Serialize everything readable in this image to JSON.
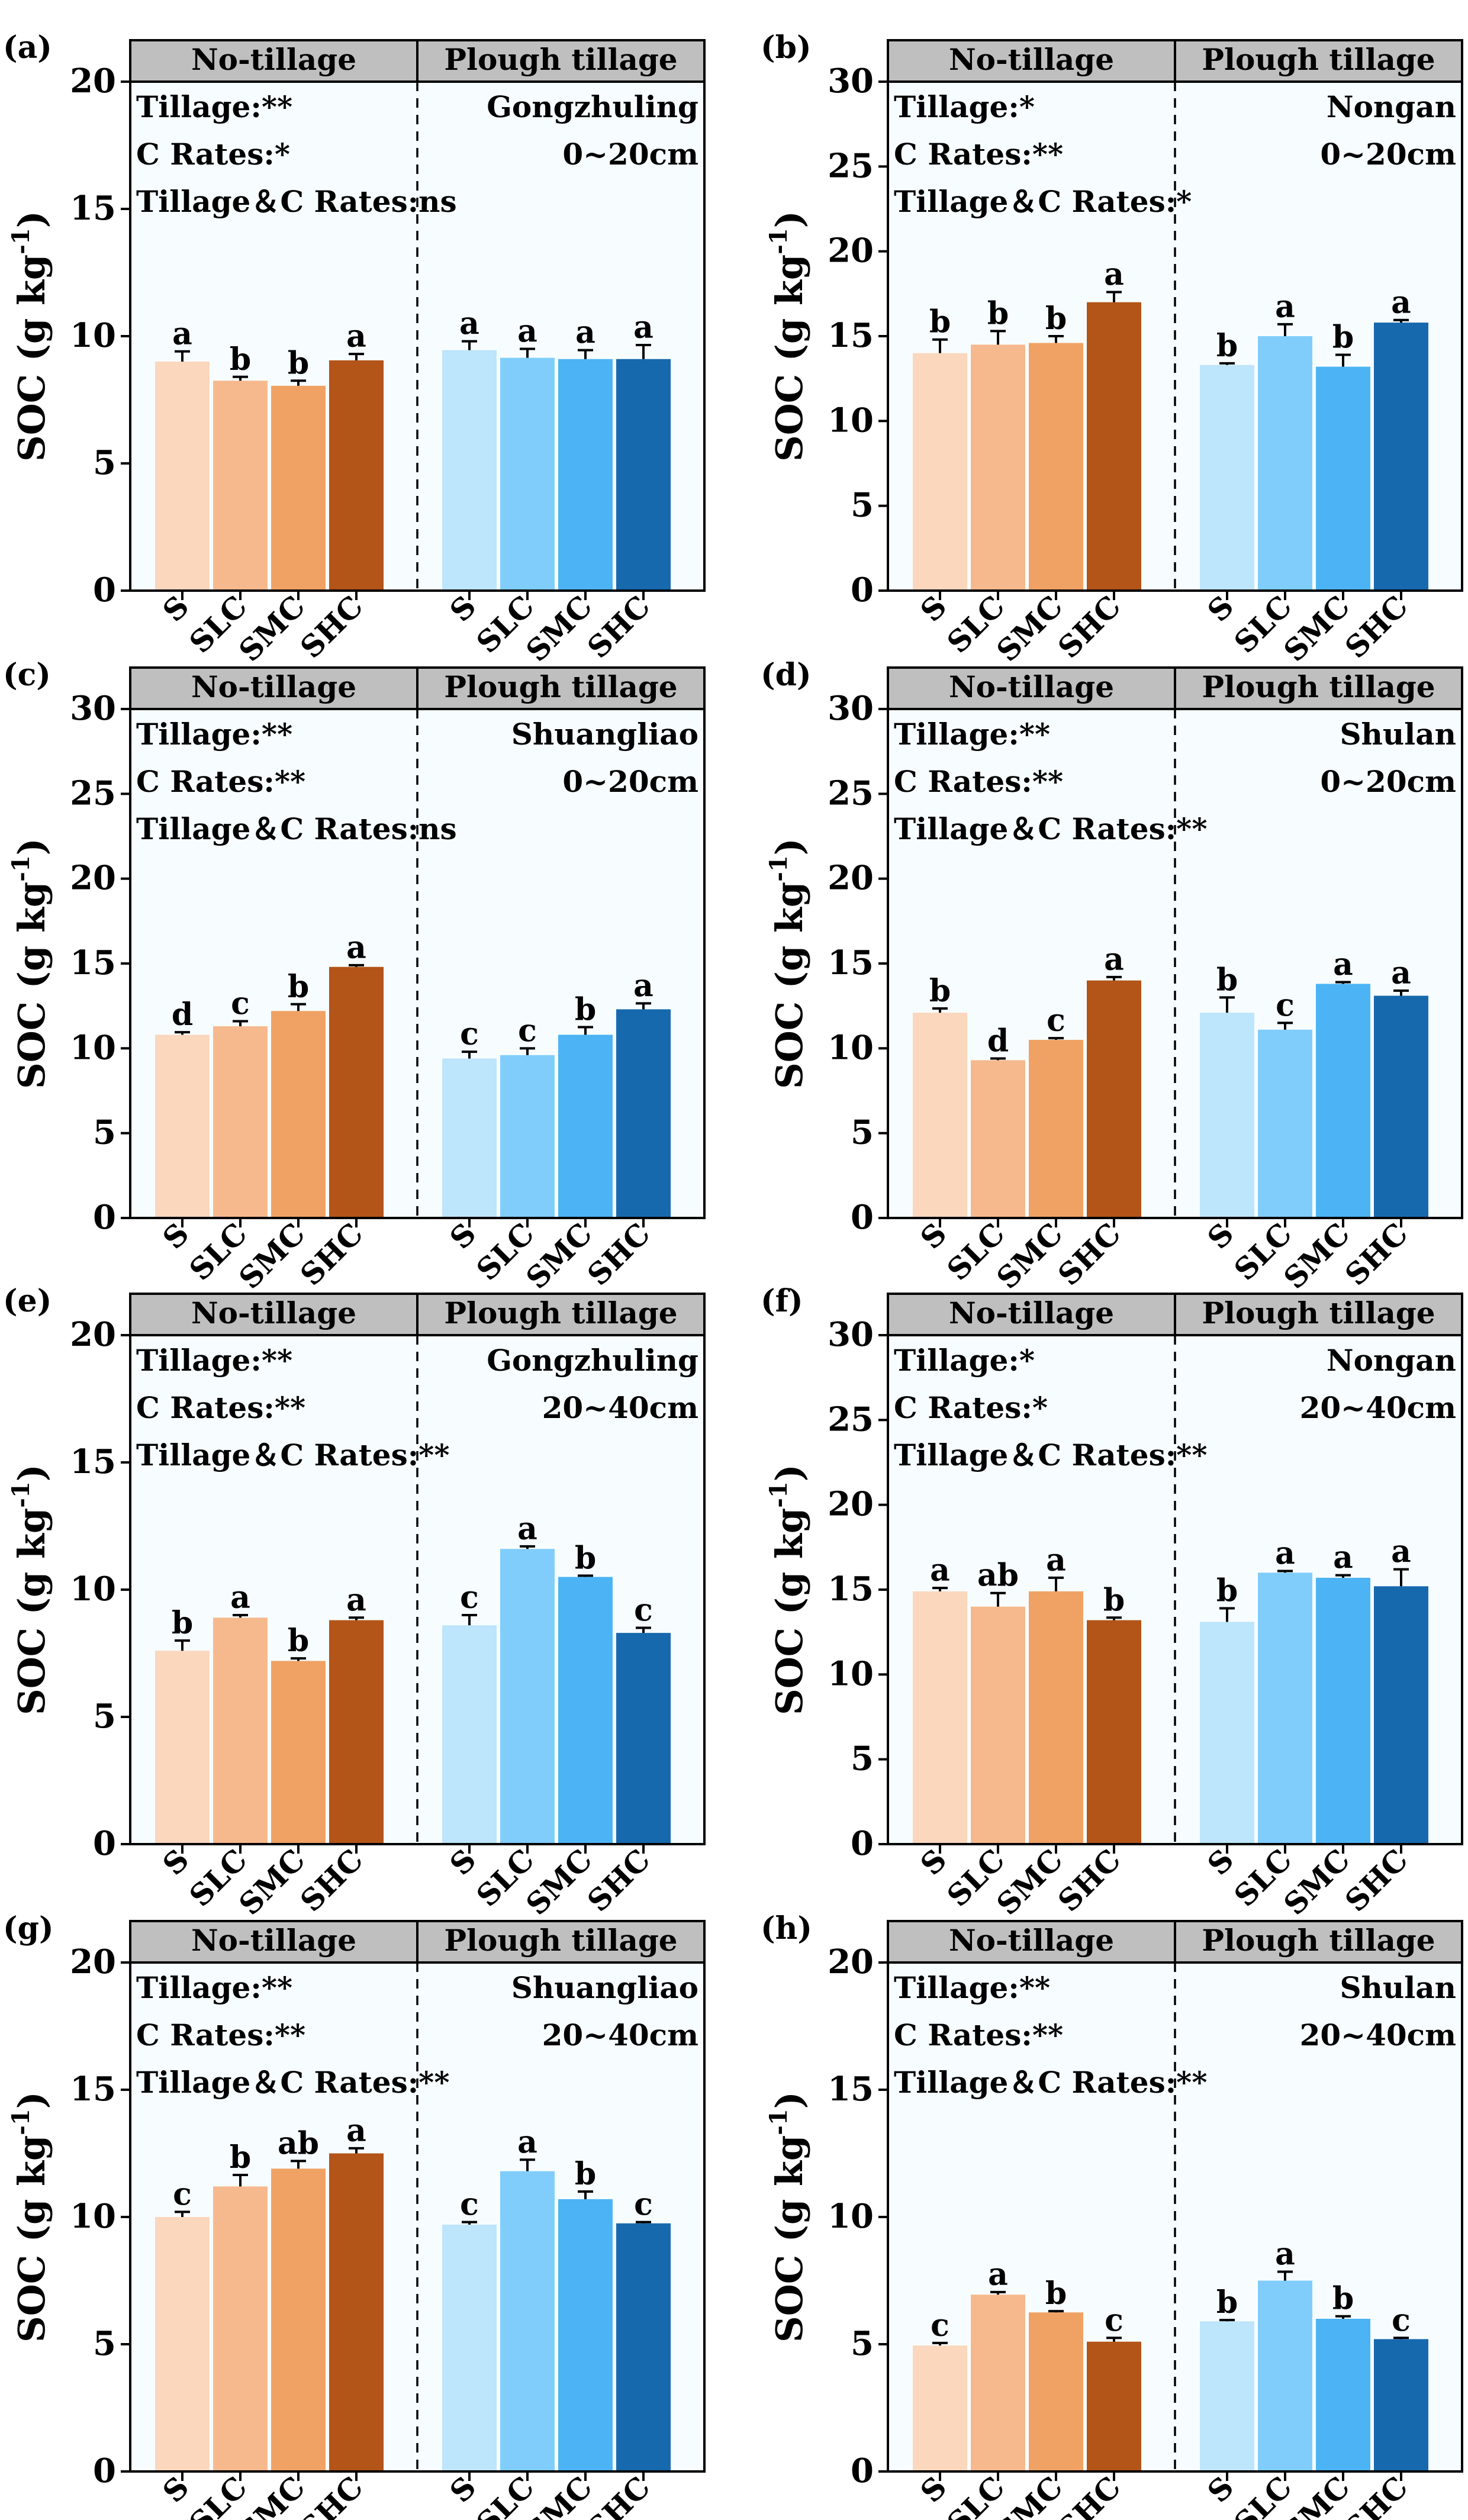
{
  "figure": {
    "y_axis_label": "SOC (g kg",
    "y_axis_superscript": "-1",
    "y_axis_close": ")"
  },
  "colors": {
    "notill": [
      "#fad7bd",
      "#f6b98e",
      "#f0a264",
      "#b35418"
    ],
    "plough": [
      "#bde5fb",
      "#80cdfb",
      "#4cb4f4",
      "#1769ae"
    ],
    "header_fill": "#bfbfbf",
    "panel_fill": "#f7fdff"
  },
  "chart_data": [
    {
      "id": "a",
      "label": "(a)",
      "type": "bar",
      "groups": [
        "No-tillage",
        "Plough tillage"
      ],
      "categories": [
        "S",
        "SLC",
        "SMC",
        "SHC"
      ],
      "ylim": [
        0,
        20
      ],
      "ticks": [
        0,
        5,
        10,
        15,
        20
      ],
      "ylabel": "SOC (g kg-1)",
      "series": [
        {
          "name": "No-tillage",
          "values": [
            9.0,
            8.25,
            8.05,
            9.05
          ],
          "errors": [
            0.4,
            0.15,
            0.2,
            0.25
          ],
          "letters": [
            "a",
            "b",
            "b",
            "a"
          ]
        },
        {
          "name": "Plough tillage",
          "values": [
            9.45,
            9.15,
            9.1,
            9.1
          ],
          "errors": [
            0.35,
            0.35,
            0.35,
            0.55
          ],
          "letters": [
            "a",
            "a",
            "a",
            "a"
          ]
        }
      ],
      "stats": [
        "Tillage:**",
        "C Rates:*",
        "Tillage＆C Rates:ns"
      ],
      "site": "Gongzhuling",
      "depth": "0~20cm"
    },
    {
      "id": "b",
      "label": "(b)",
      "type": "bar",
      "groups": [
        "No-tillage",
        "Plough tillage"
      ],
      "categories": [
        "S",
        "SLC",
        "SMC",
        "SHC"
      ],
      "ylim": [
        0,
        30
      ],
      "ticks": [
        0,
        5,
        10,
        15,
        20,
        25,
        30
      ],
      "ylabel": "SOC (g kg-1)",
      "series": [
        {
          "name": "No-tillage",
          "values": [
            14.0,
            14.5,
            14.6,
            17.0
          ],
          "errors": [
            0.8,
            0.8,
            0.4,
            0.6
          ],
          "letters": [
            "b",
            "b",
            "b",
            "a"
          ]
        },
        {
          "name": "Plough tillage",
          "values": [
            13.3,
            15.0,
            13.2,
            15.8
          ],
          "errors": [
            0.1,
            0.7,
            0.7,
            0.15
          ],
          "letters": [
            "b",
            "a",
            "b",
            "a"
          ]
        }
      ],
      "stats": [
        "Tillage:*",
        "C Rates:**",
        "Tillage＆C Rates:*"
      ],
      "site": "Nongan",
      "depth": "0~20cm"
    },
    {
      "id": "c",
      "label": "(c)",
      "type": "bar",
      "groups": [
        "No-tillage",
        "Plough tillage"
      ],
      "categories": [
        "S",
        "SLC",
        "SMC",
        "SHC"
      ],
      "ylim": [
        0,
        30
      ],
      "ticks": [
        0,
        5,
        10,
        15,
        20,
        25,
        30
      ],
      "ylabel": "SOC (g kg-1)",
      "series": [
        {
          "name": "No-tillage",
          "values": [
            10.8,
            11.3,
            12.2,
            14.8
          ],
          "errors": [
            0.15,
            0.3,
            0.4,
            0.1
          ],
          "letters": [
            "d",
            "c",
            "b",
            "a"
          ]
        },
        {
          "name": "Plough tillage",
          "values": [
            9.4,
            9.6,
            10.8,
            12.3
          ],
          "errors": [
            0.4,
            0.4,
            0.45,
            0.35
          ],
          "letters": [
            "c",
            "c",
            "b",
            "a"
          ]
        }
      ],
      "stats": [
        "Tillage:**",
        "C Rates:**",
        "Tillage＆C Rates:ns"
      ],
      "site": "Shuangliao",
      "depth": "0~20cm"
    },
    {
      "id": "d",
      "label": "(d)",
      "type": "bar",
      "groups": [
        "No-tillage",
        "Plough tillage"
      ],
      "categories": [
        "S",
        "SLC",
        "SMC",
        "SHC"
      ],
      "ylim": [
        0,
        30
      ],
      "ticks": [
        0,
        5,
        10,
        15,
        20,
        25,
        30
      ],
      "ylabel": "SOC (g kg-1)",
      "series": [
        {
          "name": "No-tillage",
          "values": [
            12.1,
            9.3,
            10.5,
            14.0
          ],
          "errors": [
            0.25,
            0.1,
            0.1,
            0.2
          ],
          "letters": [
            "b",
            "d",
            "c",
            "a"
          ]
        },
        {
          "name": "Plough tillage",
          "values": [
            12.1,
            11.1,
            13.8,
            13.1
          ],
          "errors": [
            0.9,
            0.4,
            0.1,
            0.3
          ],
          "letters": [
            "b",
            "c",
            "a",
            "a"
          ]
        }
      ],
      "stats": [
        "Tillage:**",
        "C Rates:**",
        "Tillage＆C Rates:**"
      ],
      "site": "Shulan",
      "depth": "0~20cm"
    },
    {
      "id": "e",
      "label": "(e)",
      "type": "bar",
      "groups": [
        "No-tillage",
        "Plough tillage"
      ],
      "categories": [
        "S",
        "SLC",
        "SMC",
        "SHC"
      ],
      "ylim": [
        0,
        20
      ],
      "ticks": [
        0,
        5,
        10,
        15,
        20
      ],
      "ylabel": "SOC (g kg-1)",
      "series": [
        {
          "name": "No-tillage",
          "values": [
            7.6,
            8.9,
            7.2,
            8.8
          ],
          "errors": [
            0.4,
            0.1,
            0.1,
            0.1
          ],
          "letters": [
            "b",
            "a",
            "b",
            "a"
          ]
        },
        {
          "name": "Plough tillage",
          "values": [
            8.6,
            11.6,
            10.5,
            8.3
          ],
          "errors": [
            0.4,
            0.1,
            0.05,
            0.2
          ],
          "letters": [
            "c",
            "a",
            "b",
            "c"
          ]
        }
      ],
      "stats": [
        "Tillage:**",
        "C Rates:**",
        "Tillage＆C Rates:**"
      ],
      "site": "Gongzhuling",
      "depth": "20~40cm"
    },
    {
      "id": "f",
      "label": "(f)",
      "type": "bar",
      "groups": [
        "No-tillage",
        "Plough tillage"
      ],
      "categories": [
        "S",
        "SLC",
        "SMC",
        "SHC"
      ],
      "ylim": [
        0,
        30
      ],
      "ticks": [
        0,
        5,
        10,
        15,
        20,
        25,
        30
      ],
      "ylabel": "SOC (g kg-1)",
      "series": [
        {
          "name": "No-tillage",
          "values": [
            14.9,
            14.0,
            14.9,
            13.2
          ],
          "errors": [
            0.2,
            0.8,
            0.8,
            0.15
          ],
          "letters": [
            "a",
            "ab",
            "a",
            "b"
          ]
        },
        {
          "name": "Plough tillage",
          "values": [
            13.1,
            16.0,
            15.7,
            15.2
          ],
          "errors": [
            0.8,
            0.1,
            0.15,
            1.0
          ],
          "letters": [
            "b",
            "a",
            "a",
            "a"
          ]
        }
      ],
      "stats": [
        "Tillage:*",
        "C Rates:*",
        "Tillage＆C Rates:**"
      ],
      "site": "Nongan",
      "depth": "20~40cm"
    },
    {
      "id": "g",
      "label": "(g)",
      "type": "bar",
      "groups": [
        "No-tillage",
        "Plough tillage"
      ],
      "categories": [
        "S",
        "SLC",
        "SMC",
        "SHC"
      ],
      "ylim": [
        0,
        20
      ],
      "ticks": [
        0,
        5,
        10,
        15,
        20
      ],
      "ylabel": "SOC (g kg-1)",
      "series": [
        {
          "name": "No-tillage",
          "values": [
            10.0,
            11.2,
            11.9,
            12.5
          ],
          "errors": [
            0.2,
            0.45,
            0.3,
            0.2
          ],
          "letters": [
            "c",
            "b",
            "ab",
            "a"
          ]
        },
        {
          "name": "Plough tillage",
          "values": [
            9.7,
            11.8,
            10.7,
            9.75
          ],
          "errors": [
            0.1,
            0.45,
            0.3,
            0.05
          ],
          "letters": [
            "c",
            "a",
            "b",
            "c"
          ]
        }
      ],
      "stats": [
        "Tillage:**",
        "C Rates:**",
        "Tillage＆C Rates:**"
      ],
      "site": "Shuangliao",
      "depth": "20~40cm"
    },
    {
      "id": "h",
      "label": "(h)",
      "type": "bar",
      "groups": [
        "No-tillage",
        "Plough tillage"
      ],
      "categories": [
        "S",
        "SLC",
        "SMC",
        "SHC"
      ],
      "ylim": [
        0,
        20
      ],
      "ticks": [
        0,
        5,
        10,
        15,
        20
      ],
      "ylabel": "SOC (g kg-1)",
      "series": [
        {
          "name": "No-tillage",
          "values": [
            4.95,
            6.95,
            6.25,
            5.1
          ],
          "errors": [
            0.1,
            0.1,
            0.05,
            0.15
          ],
          "letters": [
            "c",
            "a",
            "b",
            "c"
          ]
        },
        {
          "name": "Plough tillage",
          "values": [
            5.9,
            7.5,
            6.0,
            5.2
          ],
          "errors": [
            0.05,
            0.35,
            0.1,
            0.05
          ],
          "letters": [
            "b",
            "a",
            "b",
            "c"
          ]
        }
      ],
      "stats": [
        "Tillage:**",
        "C Rates:**",
        "Tillage＆C Rates:**"
      ],
      "site": "Shulan",
      "depth": "20~40cm"
    }
  ]
}
